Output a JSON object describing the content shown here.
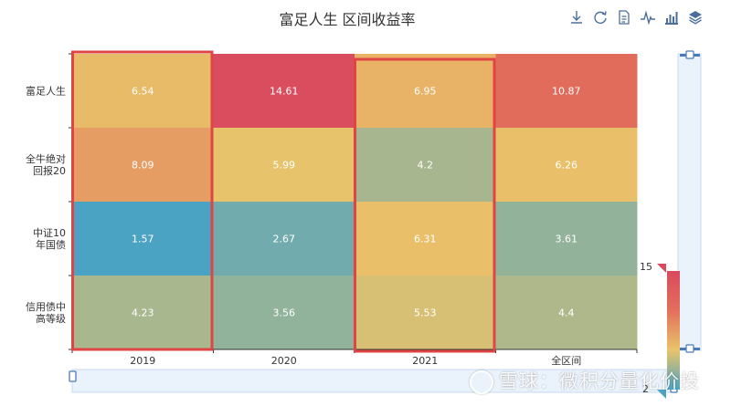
{
  "chart_data": {
    "type": "heatmap",
    "title": "富足人生 区间收益率",
    "x_categories": [
      "2019",
      "2020",
      "2021",
      "全区间"
    ],
    "y_categories": [
      "富足人生",
      "全牛绝对回报20",
      "中证10年国债",
      "信用债中高等级"
    ],
    "y_label_lines": [
      [
        "富足人生"
      ],
      [
        "全牛绝对",
        "回报20"
      ],
      [
        "中证10",
        "年国债"
      ],
      [
        "信用债中",
        "高等级"
      ]
    ],
    "values": [
      [
        6.54,
        14.61,
        6.95,
        10.87
      ],
      [
        8.09,
        5.99,
        4.2,
        6.26
      ],
      [
        1.57,
        2.67,
        6.31,
        3.61
      ],
      [
        4.23,
        3.56,
        5.53,
        4.4
      ]
    ],
    "value_labels": [
      [
        "6.54",
        "14.61",
        "6.95",
        "10.87"
      ],
      [
        "8.09",
        "5.99",
        "4.2",
        "6.26"
      ],
      [
        "1.57",
        "2.67",
        "6.31",
        "3.61"
      ],
      [
        "4.23",
        "3.56",
        "5.53",
        "4.4"
      ]
    ],
    "visual_map": {
      "min": 1.57,
      "max": 15,
      "max_label": "15",
      "min_label": "2",
      "colors": [
        "#4ba3c3",
        "#e9c46a",
        "#e36f5b",
        "#d94a5e"
      ]
    },
    "highlighted_columns": [
      "2019",
      "2021"
    ],
    "highlight_color": "#e04545"
  },
  "toolbox": {
    "icons": [
      "download-icon",
      "refresh-icon",
      "data-view-icon",
      "line-chart-icon",
      "bar-chart-icon",
      "stack-icon"
    ]
  },
  "watermark": {
    "text": "雪球：微积分量化价投"
  }
}
